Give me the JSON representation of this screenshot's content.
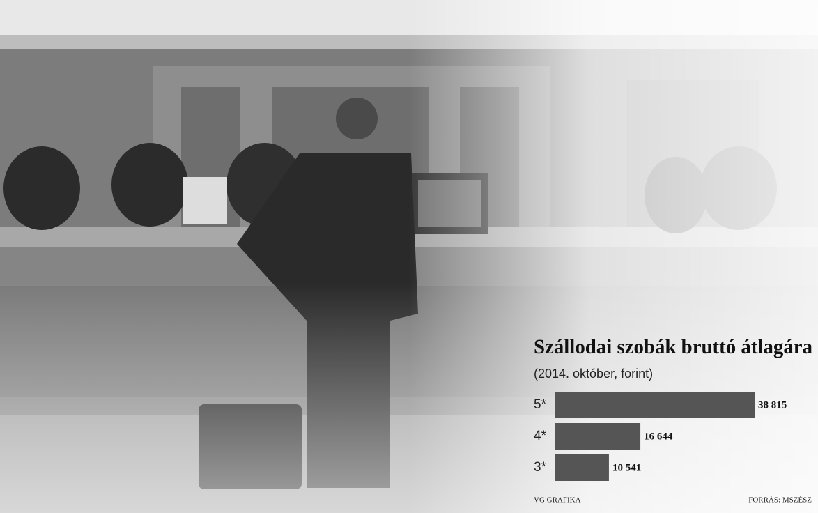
{
  "chart_data": {
    "type": "bar",
    "orientation": "horizontal",
    "title": "Szállodai szobák bruttó átlagára",
    "subtitle": "(2014. október, forint)",
    "categories": [
      "5*",
      "4*",
      "3*"
    ],
    "values": [
      38815,
      16644,
      10541
    ],
    "value_labels": [
      "38 815",
      "16 644",
      "10 541"
    ],
    "color": "#555555",
    "credit": "VG GRAFIKA",
    "source": "FORRÁS: MSZÉSZ"
  }
}
